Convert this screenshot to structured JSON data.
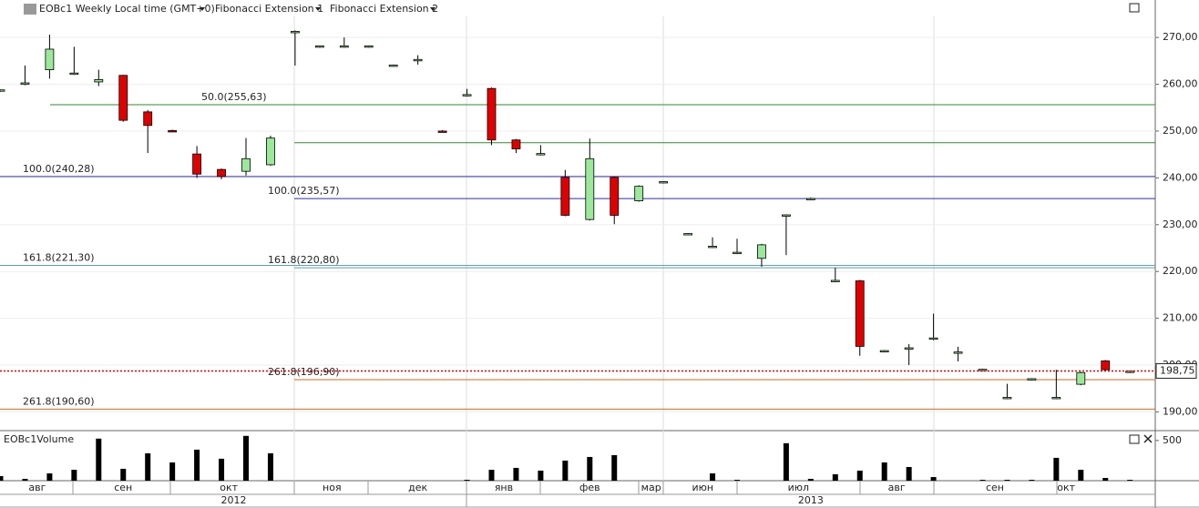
{
  "chart_data": {
    "type": "candlestick",
    "title": "EOBc1 Weekly Local time (GMT+0)",
    "tools": [
      "Fibonacci Extension 1",
      "Fibonacci Extension 2"
    ],
    "open": [
      258.6,
      260.0,
      263.1,
      262.2,
      260.5,
      261.9,
      254.1,
      250.1,
      245.1,
      241.8,
      241.4,
      242.8,
      271.0,
      268.0,
      268.0,
      268.0,
      264.0,
      265.0,
      250.0,
      257.6,
      259.1,
      248.1,
      245.0,
      240.1,
      231.1,
      240.1,
      235.1,
      239.0,
      228.0,
      225.2,
      223.9,
      222.8,
      231.9,
      235.4,
      217.9,
      218.0,
      202.9,
      203.5,
      205.6,
      202.6,
      198.9,
      192.9,
      196.9,
      192.9,
      195.9,
      200.9,
      198.5
    ],
    "high": [
      258.9,
      264.0,
      270.6,
      268.0,
      263.1,
      262.0,
      254.5,
      250.3,
      246.8,
      242.0,
      248.5,
      249.0,
      271.5,
      268.3,
      270.0,
      268.3,
      264.2,
      266.2,
      250.2,
      259.0,
      259.3,
      248.3,
      247.0,
      241.7,
      248.4,
      240.3,
      238.4,
      239.3,
      228.2,
      227.3,
      227.0,
      225.9,
      232.2,
      235.8,
      220.8,
      218.2,
      203.2,
      204.5,
      211.0,
      203.9,
      199.2,
      196.0,
      197.2,
      199.0,
      198.6,
      201.1,
      198.8
    ],
    "low": [
      258.4,
      259.8,
      261.2,
      262.0,
      259.6,
      252.0,
      245.3,
      249.8,
      240.0,
      239.7,
      240.5,
      242.6,
      264.0,
      267.8,
      267.8,
      267.8,
      263.8,
      264.2,
      249.8,
      257.4,
      247.0,
      245.3,
      244.8,
      231.8,
      230.9,
      230.1,
      234.9,
      238.8,
      227.8,
      225.0,
      223.7,
      221.0,
      223.5,
      235.2,
      217.7,
      202.0,
      202.7,
      200.0,
      205.3,
      200.8,
      198.7,
      192.7,
      196.7,
      192.7,
      195.7,
      198.8,
      198.3
    ],
    "close": [
      258.8,
      260.3,
      267.5,
      262.4,
      261.0,
      252.3,
      251.2,
      249.9,
      240.8,
      240.3,
      244.1,
      248.5,
      271.3,
      268.2,
      268.2,
      268.2,
      264.1,
      265.3,
      249.9,
      257.8,
      248.1,
      246.2,
      245.2,
      232.0,
      244.1,
      232.0,
      238.2,
      239.2,
      228.1,
      225.4,
      224.1,
      225.7,
      232.1,
      235.6,
      218.1,
      204.0,
      203.1,
      203.7,
      205.8,
      202.8,
      199.1,
      193.1,
      197.1,
      193.1,
      198.4,
      199.0,
      198.7
    ],
    "volume": [
      57,
      23,
      91,
      136,
      523,
      148,
      341,
      227,
      386,
      273,
      557,
      341,
      null,
      null,
      null,
      null,
      null,
      null,
      null,
      11,
      136,
      159,
      125,
      250,
      295,
      318,
      null,
      null,
      null,
      91,
      11,
      null,
      466,
      23,
      80,
      125,
      227,
      170,
      45,
      null,
      11,
      11,
      11,
      284,
      136,
      34,
      11
    ],
    "volume_label": "EOBc1Volume",
    "ylim": [
      186,
      278
    ],
    "yticks": [
      {
        "value": 190,
        "label": "190,00"
      },
      {
        "value": 200,
        "label": "200,00"
      },
      {
        "value": 210,
        "label": "210,00"
      },
      {
        "value": 220,
        "label": "220,00"
      },
      {
        "value": 230,
        "label": "230,00"
      },
      {
        "value": 240,
        "label": "240,00"
      },
      {
        "value": 250,
        "label": "250,00"
      },
      {
        "value": 260,
        "label": "260,00"
      },
      {
        "value": 270,
        "label": "270,00"
      }
    ],
    "vlim": [
      0,
      600
    ],
    "vticks": [
      500
    ],
    "last_price": {
      "value": 198.75,
      "label": "198,75"
    },
    "levels": [
      {
        "value": 255.63,
        "label": "50.0(255,63)",
        "color": "#2e8b2e",
        "tool": 1
      },
      {
        "value": 247.5,
        "color": "#2e8b2e",
        "tool": 2
      },
      {
        "value": 240.28,
        "label": "100.0(240,28)",
        "color": "#2a2ab0",
        "tool": 1
      },
      {
        "value": 235.57,
        "label": "100.0(235,57)",
        "color": "#2a2ab0",
        "tool": 2
      },
      {
        "value": 221.3,
        "label": "161.8(221,30)",
        "color": "#5f9eae",
        "tool": 1
      },
      {
        "value": 220.8,
        "label": "161.8(220,80)",
        "color": "#5f9eae",
        "tool": 2
      },
      {
        "value": 196.9,
        "label": "261.8(196,90)",
        "color": "#d2691e",
        "tool": 2
      },
      {
        "value": 190.6,
        "label": "261.8(190,60)",
        "color": "#d2691e",
        "tool": 1
      }
    ],
    "months": [
      {
        "value": 1.5,
        "label": "авг"
      },
      {
        "value": 5,
        "label": "сен"
      },
      {
        "value": 9.3,
        "label": "окт"
      },
      {
        "value": 13.5,
        "label": "ноя"
      },
      {
        "value": 17,
        "label": "дек"
      },
      {
        "value": 20.5,
        "label": "янв"
      },
      {
        "value": 24,
        "label": "фев"
      },
      {
        "value": 26.5,
        "label": "мар"
      },
      {
        "value": 28.6,
        "label": "июн"
      },
      {
        "value": 32.5,
        "label": "июл"
      },
      {
        "value": 36.5,
        "label": "авг"
      },
      {
        "value": 40.5,
        "label": "сен"
      },
      {
        "value": 43.4,
        "label": "окт"
      }
    ],
    "years": [
      {
        "value": 9.5,
        "label": "2012"
      },
      {
        "value": 33,
        "label": "2013"
      }
    ],
    "colors": {
      "up": "#9be89b",
      "down": "#e00000"
    }
  }
}
